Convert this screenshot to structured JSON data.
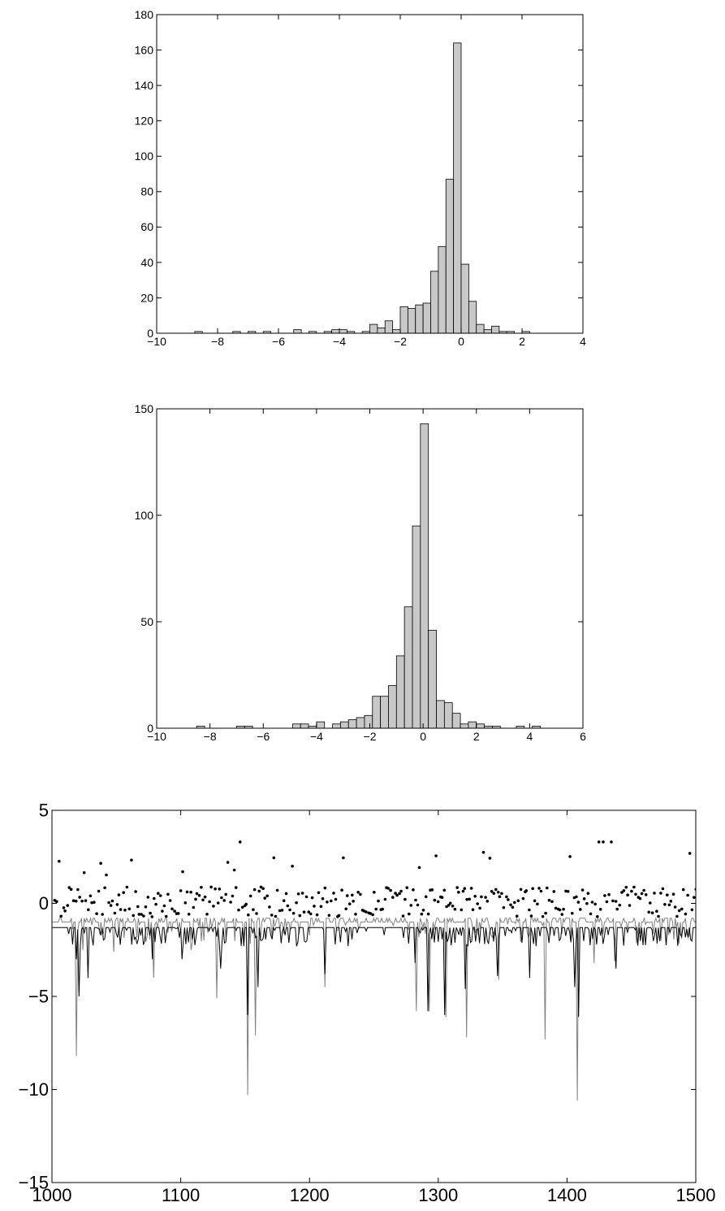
{
  "chart_data": [
    {
      "type": "bar",
      "subtype": "histogram",
      "xlim": [
        -10,
        4
      ],
      "ylim": [
        0,
        180
      ],
      "xticks": [
        "−10",
        "−8",
        "−6",
        "−4",
        "−2",
        "0",
        "2",
        "4"
      ],
      "yticks": [
        "0",
        "20",
        "40",
        "60",
        "80",
        "100",
        "120",
        "140",
        "160",
        "180"
      ],
      "bin_width": 0.25,
      "bins": [
        [
          -8.625,
          1
        ],
        [
          -7.375,
          1
        ],
        [
          -6.875,
          1
        ],
        [
          -6.375,
          1
        ],
        [
          -5.375,
          2
        ],
        [
          -4.875,
          1
        ],
        [
          -4.375,
          1
        ],
        [
          -4.125,
          2
        ],
        [
          -3.875,
          2
        ],
        [
          -3.625,
          1
        ],
        [
          -3.125,
          1
        ],
        [
          -2.875,
          5
        ],
        [
          -2.625,
          3
        ],
        [
          -2.375,
          7
        ],
        [
          -2.125,
          2
        ],
        [
          -1.875,
          15
        ],
        [
          -1.625,
          14
        ],
        [
          -1.375,
          16
        ],
        [
          -1.125,
          17
        ],
        [
          -0.875,
          35
        ],
        [
          -0.625,
          49
        ],
        [
          -0.375,
          87
        ],
        [
          -0.125,
          164
        ],
        [
          0.125,
          39
        ],
        [
          0.375,
          18
        ],
        [
          0.625,
          5
        ],
        [
          0.875,
          2
        ],
        [
          1.125,
          4
        ],
        [
          1.375,
          1
        ],
        [
          1.625,
          1
        ],
        [
          2.125,
          1
        ]
      ],
      "grid": false
    },
    {
      "type": "bar",
      "subtype": "histogram",
      "xlim": [
        -10,
        6
      ],
      "ylim": [
        0,
        150
      ],
      "xticks": [
        "−10",
        "−8",
        "−6",
        "−4",
        "−2",
        "0",
        "2",
        "4",
        "6"
      ],
      "yticks": [
        "0",
        "50",
        "100",
        "150"
      ],
      "bin_width": 0.3,
      "bins": [
        [
          -8.35,
          1
        ],
        [
          -6.85,
          1
        ],
        [
          -6.55,
          1
        ],
        [
          -4.75,
          2
        ],
        [
          -4.45,
          2
        ],
        [
          -4.15,
          1
        ],
        [
          -3.85,
          3
        ],
        [
          -3.25,
          2
        ],
        [
          -2.95,
          3
        ],
        [
          -2.65,
          4
        ],
        [
          -2.35,
          5
        ],
        [
          -2.05,
          6
        ],
        [
          -1.75,
          15
        ],
        [
          -1.45,
          15
        ],
        [
          -1.15,
          20
        ],
        [
          -0.85,
          34
        ],
        [
          -0.55,
          57
        ],
        [
          -0.25,
          95
        ],
        [
          0.05,
          143
        ],
        [
          0.35,
          46
        ],
        [
          0.65,
          13
        ],
        [
          0.95,
          12
        ],
        [
          1.25,
          7
        ],
        [
          1.55,
          2
        ],
        [
          1.85,
          3
        ],
        [
          2.15,
          2
        ],
        [
          2.45,
          1
        ],
        [
          2.75,
          1
        ],
        [
          3.65,
          1
        ],
        [
          4.25,
          1
        ]
      ],
      "grid": false
    },
    {
      "type": "line",
      "xlim": [
        1000,
        1500
      ],
      "ylim": [
        -15,
        5
      ],
      "xticks": [
        "1000",
        "1100",
        "1200",
        "1300",
        "1400",
        "1500"
      ],
      "yticks": [
        "−15",
        "−10",
        "−5",
        "0",
        "5"
      ],
      "series": [
        {
          "style": "scatter",
          "color": "#000000",
          "points": "dense scatter of dots around 0 (range about -1.2 to 3.5)"
        },
        {
          "style": "line",
          "color": "#000000",
          "baseline": -1.3,
          "spikes": [
            [
              1019,
              -3.0
            ],
            [
              1021,
              -5.0
            ],
            [
              1028,
              -4.0
            ],
            [
              1078,
              -3.0
            ],
            [
              1101,
              -3.0
            ],
            [
              1131,
              -3.5
            ],
            [
              1152,
              -6.0
            ],
            [
              1160,
              -4.5
            ],
            [
              1212,
              -3.8
            ],
            [
              1282,
              -3.2
            ],
            [
              1292,
              -5.8
            ],
            [
              1305,
              -6.0
            ],
            [
              1321,
              -4.6
            ],
            [
              1346,
              -3.9
            ],
            [
              1371,
              -4.0
            ],
            [
              1406,
              -4.5
            ],
            [
              1409,
              -6.1
            ],
            [
              1438,
              -3.5
            ]
          ]
        },
        {
          "style": "line",
          "color": "#808080",
          "baseline": -1.0,
          "spikes": [
            [
              1019,
              -8.2
            ],
            [
              1024,
              -2.5
            ],
            [
              1048,
              -2.6
            ],
            [
              1079,
              -4.0
            ],
            [
              1108,
              -2.5
            ],
            [
              1128,
              -5.1
            ],
            [
              1152,
              -10.3
            ],
            [
              1158,
              -7.1
            ],
            [
              1212,
              -4.5
            ],
            [
              1283,
              -5.8
            ],
            [
              1293,
              -5.8
            ],
            [
              1306,
              -6.1
            ],
            [
              1322,
              -7.2
            ],
            [
              1347,
              -4.1
            ],
            [
              1383,
              -7.3
            ],
            [
              1408,
              -10.6
            ],
            [
              1421,
              -3.2
            ],
            [
              1437,
              -3.1
            ]
          ]
        }
      ],
      "grid": false
    }
  ]
}
